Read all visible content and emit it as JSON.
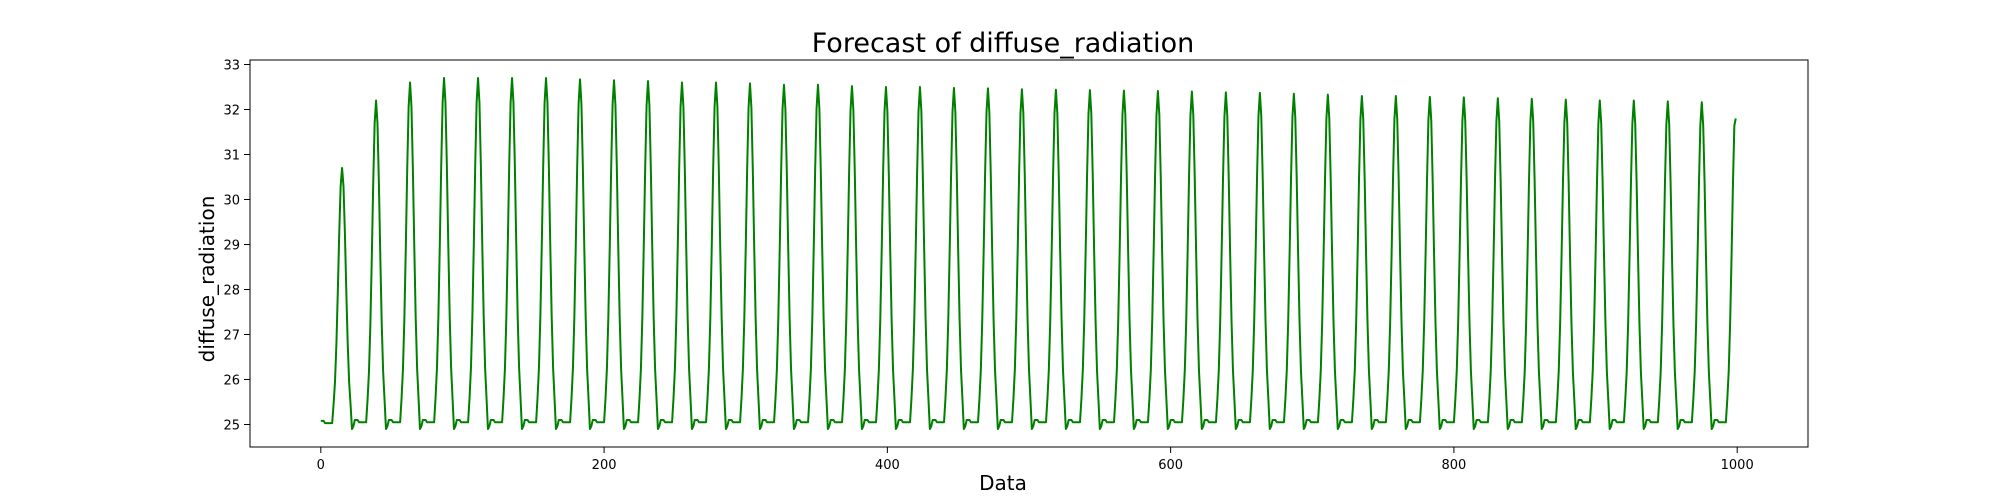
{
  "chart_data": {
    "type": "line",
    "title": "Forecast of diffuse_radiation",
    "xlabel": "Data",
    "ylabel": "diffuse_radiation",
    "xlim": [
      -50,
      1050
    ],
    "ylim": [
      24.5,
      33.1
    ],
    "xticks": [
      0,
      200,
      400,
      600,
      800,
      1000
    ],
    "yticks": [
      25,
      26,
      27,
      28,
      29,
      30,
      31,
      32,
      33
    ],
    "grid": false,
    "legend": "none",
    "series": [
      {
        "color": "#008000",
        "n_points": 1000,
        "period": 24,
        "baseline": 25.05,
        "trough": 24.9,
        "first_peak_x": 15,
        "first_peak_y": 30.7,
        "peak_values": [
          30.7,
          32.2,
          32.6,
          32.7,
          32.7,
          32.7,
          32.7,
          32.67,
          32.65,
          32.63,
          32.6,
          32.6,
          32.58,
          32.55,
          32.55,
          32.52,
          32.5,
          32.5,
          32.48,
          32.47,
          32.45,
          32.44,
          32.43,
          32.42,
          32.41,
          32.4,
          32.38,
          32.37,
          32.35,
          32.33,
          32.3,
          32.3,
          32.28,
          32.27,
          32.25,
          32.24,
          32.22,
          32.2,
          32.2,
          32.18,
          32.16,
          32.15
        ],
        "last_value": 31.8
      }
    ]
  }
}
